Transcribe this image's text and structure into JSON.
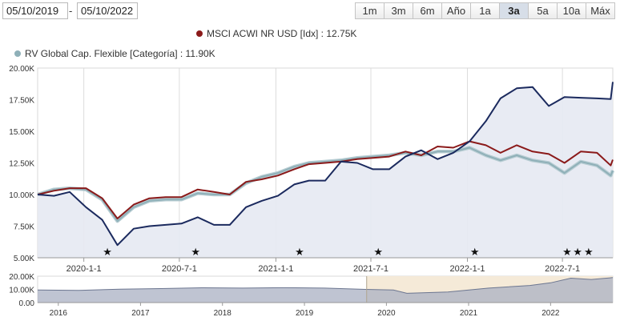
{
  "date_range": {
    "from": "05/10/2019",
    "separator": "-",
    "to": "05/10/2022"
  },
  "range_buttons": [
    {
      "label": "1m",
      "active": false
    },
    {
      "label": "3m",
      "active": false
    },
    {
      "label": "6m",
      "active": false
    },
    {
      "label": "Año",
      "active": false
    },
    {
      "label": "1a",
      "active": false
    },
    {
      "label": "3a",
      "active": true
    },
    {
      "label": "5a",
      "active": false
    },
    {
      "label": "10a",
      "active": false
    },
    {
      "label": "Máx",
      "active": false
    }
  ],
  "legend": [
    {
      "label": "MSCI ACWI NR USD [Idx] : 12.75K",
      "color": "#8b1a1a"
    },
    {
      "label": "RV Global Cap. Flexible [Categoría] : 11.90K",
      "color": "#8fb0b8"
    }
  ],
  "colors": {
    "fund": "#1b2a5e",
    "index": "#8b1a1a",
    "category": "#8fb0b8",
    "area_fill": "#e6e9f2",
    "navigator_selection": "#f5ead8",
    "star": "#111111"
  },
  "chart_data": {
    "type": "line",
    "ylim": [
      5000,
      20000
    ],
    "y_ticks": [
      {
        "label": "20.00K",
        "value": 20000
      },
      {
        "label": "17.50K",
        "value": 17500
      },
      {
        "label": "15.00K",
        "value": 15000
      },
      {
        "label": "12.50K",
        "value": 12500
      },
      {
        "label": "10.00K",
        "value": 10000
      },
      {
        "label": "7.50K",
        "value": 7500
      },
      {
        "label": "5.00K",
        "value": 5000
      }
    ],
    "x_range": [
      "2019-10-05",
      "2022-10-05"
    ],
    "x_ticks": [
      {
        "label": "2020-1-1",
        "date": "2020-01-01"
      },
      {
        "label": "2020-7-1",
        "date": "2020-07-01"
      },
      {
        "label": "2021-1-1",
        "date": "2021-01-01"
      },
      {
        "label": "2021-7-1",
        "date": "2021-07-01"
      },
      {
        "label": "2022-1-1",
        "date": "2022-01-01"
      },
      {
        "label": "2022-7-1",
        "date": "2022-07-01"
      }
    ],
    "grid": "vertical",
    "dates": [
      "2019-10-05",
      "2019-11-05",
      "2019-12-05",
      "2020-01-05",
      "2020-02-05",
      "2020-03-05",
      "2020-04-05",
      "2020-05-05",
      "2020-06-05",
      "2020-07-05",
      "2020-08-05",
      "2020-09-05",
      "2020-10-05",
      "2020-11-05",
      "2020-12-05",
      "2021-01-05",
      "2021-02-05",
      "2021-03-05",
      "2021-04-05",
      "2021-05-05",
      "2021-06-05",
      "2021-07-05",
      "2021-08-05",
      "2021-09-05",
      "2021-10-05",
      "2021-11-05",
      "2021-12-05",
      "2022-01-05",
      "2022-02-05",
      "2022-03-05",
      "2022-04-05",
      "2022-05-05",
      "2022-06-05",
      "2022-07-05",
      "2022-08-05",
      "2022-09-05",
      "2022-10-01",
      "2022-10-05"
    ],
    "series": [
      {
        "name": "",
        "key": "fund",
        "area": true,
        "values": [
          10000,
          9900,
          10200,
          9000,
          8000,
          6000,
          7300,
          7500,
          7600,
          7700,
          8200,
          7600,
          7600,
          9000,
          9500,
          9900,
          10800,
          11100,
          11100,
          12600,
          12500,
          12000,
          12000,
          13000,
          13500,
          12800,
          13300,
          14200,
          15800,
          17600,
          18400,
          18500,
          17000,
          17700,
          17650,
          17600,
          17550,
          18900
        ]
      },
      {
        "name": "MSCI ACWI NR USD [Idx] : 12.75K",
        "key": "index",
        "area": false,
        "values": [
          10000,
          10300,
          10500,
          10500,
          9700,
          8100,
          9200,
          9700,
          9800,
          9800,
          10400,
          10200,
          10000,
          11000,
          11200,
          11500,
          12000,
          12400,
          12500,
          12600,
          12800,
          12900,
          13000,
          13400,
          13100,
          13800,
          13700,
          14200,
          13900,
          13300,
          13900,
          13400,
          13200,
          12500,
          13400,
          13300,
          12300,
          12750
        ]
      },
      {
        "name": "RV Global Cap. Flexible [Categoría] : 11.90K",
        "key": "category",
        "area": false,
        "values": [
          10000,
          10400,
          10500,
          10400,
          9600,
          7900,
          9000,
          9500,
          9600,
          9600,
          10100,
          10000,
          10000,
          10900,
          11400,
          11700,
          12200,
          12500,
          12600,
          12700,
          12900,
          13000,
          13100,
          13300,
          13100,
          13400,
          13400,
          13700,
          13100,
          12700,
          13100,
          12700,
          12500,
          11700,
          12600,
          12300,
          11500,
          11900
        ]
      }
    ],
    "markers": {
      "symbol": "★",
      "dates": [
        "2020-02-15",
        "2020-08-01",
        "2021-02-15",
        "2021-07-15",
        "2022-01-15",
        "2022-07-10",
        "2022-07-30",
        "2022-08-20"
      ]
    },
    "navigator": {
      "ylim": [
        0,
        20000
      ],
      "y_ticks": [
        {
          "label": "20.00K",
          "value": 20000
        },
        {
          "label": "10.00K",
          "value": 10000
        },
        {
          "label": "0.00",
          "value": 0
        }
      ],
      "x_range": [
        "2015-10-01",
        "2022-10-05"
      ],
      "x_ticks": [
        {
          "label": "2016",
          "date": "2016-01-01"
        },
        {
          "label": "2017",
          "date": "2017-01-01"
        },
        {
          "label": "2018",
          "date": "2018-01-01"
        },
        {
          "label": "2019",
          "date": "2019-01-01"
        },
        {
          "label": "2020",
          "date": "2020-01-01"
        },
        {
          "label": "2021",
          "date": "2021-01-01"
        },
        {
          "label": "2022",
          "date": "2022-01-01"
        }
      ],
      "selection": [
        "2019-10-05",
        "2022-10-05"
      ],
      "dates": [
        "2015-10-01",
        "2016-04-01",
        "2016-10-01",
        "2017-04-01",
        "2017-10-01",
        "2018-04-01",
        "2018-10-01",
        "2019-04-01",
        "2019-10-01",
        "2020-02-01",
        "2020-04-01",
        "2020-10-01",
        "2021-04-01",
        "2021-10-01",
        "2022-01-01",
        "2022-04-01",
        "2022-07-01",
        "2022-10-05"
      ],
      "values": [
        9500,
        9300,
        10200,
        10600,
        11200,
        11000,
        11300,
        11000,
        10000,
        9500,
        7000,
        8000,
        11000,
        13000,
        15000,
        18500,
        17500,
        18900
      ]
    }
  }
}
